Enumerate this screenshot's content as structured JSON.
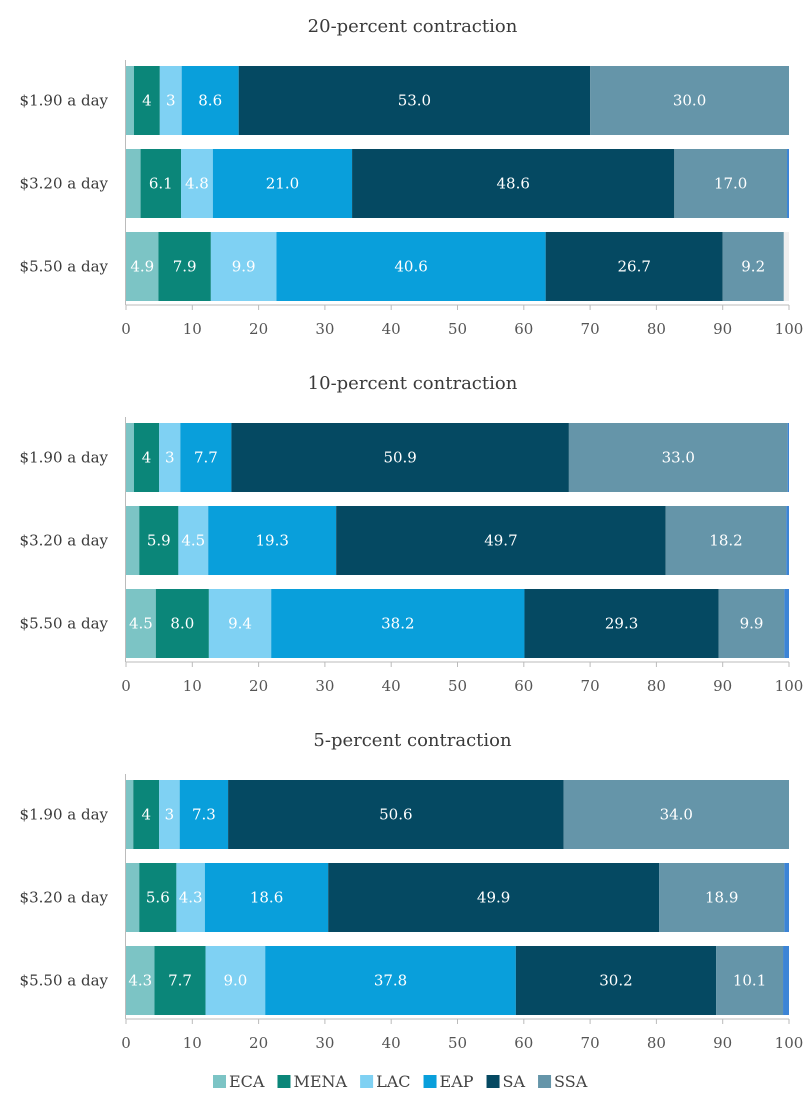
{
  "chart_data": {
    "type": "bar",
    "orientation": "horizontal",
    "stacked": true,
    "xlim": [
      0,
      100
    ],
    "xticks": [
      "0",
      "10",
      "20",
      "30",
      "40",
      "50",
      "60",
      "70",
      "80",
      "90",
      "100"
    ],
    "legend_position": "bottom",
    "series": [
      {
        "name": "ECA",
        "color": "#7cc4c5"
      },
      {
        "name": "MENA",
        "color": "#0b8679"
      },
      {
        "name": "LAC",
        "color": "#7fd1f3"
      },
      {
        "name": "EAP",
        "color": "#099fdb"
      },
      {
        "name": "SA",
        "color": "#054962"
      },
      {
        "name": "SSA",
        "color": "#6595a9"
      },
      {
        "name": "",
        "color": "#3c84d6"
      }
    ],
    "panels": [
      {
        "title": "20-percent contraction",
        "categories": [
          "$1.90 a day",
          "$3.20 a day",
          "$5.50 a day"
        ],
        "values": [
          [
            1.2,
            3.9,
            3.3,
            8.6,
            53.0,
            30.0,
            0.0
          ],
          [
            2.2,
            6.1,
            4.8,
            21.0,
            48.6,
            17.0,
            0.3
          ],
          [
            4.9,
            7.9,
            9.9,
            40.6,
            26.7,
            9.2,
            0.0
          ]
        ],
        "labels": [
          [
            "",
            "4",
            "3",
            "8.6",
            "53.0",
            "30.0",
            ""
          ],
          [
            "",
            "6.1",
            "4.8",
            "21.0",
            "48.6",
            "17.0",
            ""
          ],
          [
            "4.9",
            "7.9",
            "9.9",
            "40.6",
            "26.7",
            "9.2",
            ""
          ]
        ]
      },
      {
        "title": "10-percent contraction",
        "categories": [
          "$1.90 a day",
          "$3.20 a day",
          "$5.50 a day"
        ],
        "values": [
          [
            1.2,
            3.8,
            3.2,
            7.7,
            50.9,
            33.0,
            0.2
          ],
          [
            2.0,
            5.9,
            4.5,
            19.3,
            49.7,
            18.2,
            0.4
          ],
          [
            4.5,
            8.0,
            9.4,
            38.2,
            29.3,
            9.9,
            0.7
          ]
        ],
        "labels": [
          [
            "",
            "4",
            "3",
            "7.7",
            "50.9",
            "33.0",
            ""
          ],
          [
            "",
            "5.9",
            "4.5",
            "19.3",
            "49.7",
            "18.2",
            ""
          ],
          [
            "4.5",
            "8.0",
            "9.4",
            "38.2",
            "29.3",
            "9.9",
            ""
          ]
        ]
      },
      {
        "title": "5-percent contraction",
        "categories": [
          "$1.90 a day",
          "$3.20 a day",
          "$5.50 a day"
        ],
        "values": [
          [
            1.1,
            3.9,
            3.1,
            7.3,
            50.6,
            34.0,
            0.0
          ],
          [
            2.0,
            5.6,
            4.3,
            18.6,
            49.9,
            18.9,
            0.7
          ],
          [
            4.3,
            7.7,
            9.0,
            37.8,
            30.2,
            10.1,
            0.9
          ]
        ],
        "labels": [
          [
            "",
            "4",
            "3",
            "7.3",
            "50.6",
            "34.0",
            ""
          ],
          [
            "",
            "5.6",
            "4.3",
            "18.6",
            "49.9",
            "18.9",
            ""
          ],
          [
            "4.3",
            "7.7",
            "9.0",
            "37.8",
            "30.2",
            "10.1",
            ""
          ]
        ]
      }
    ]
  }
}
